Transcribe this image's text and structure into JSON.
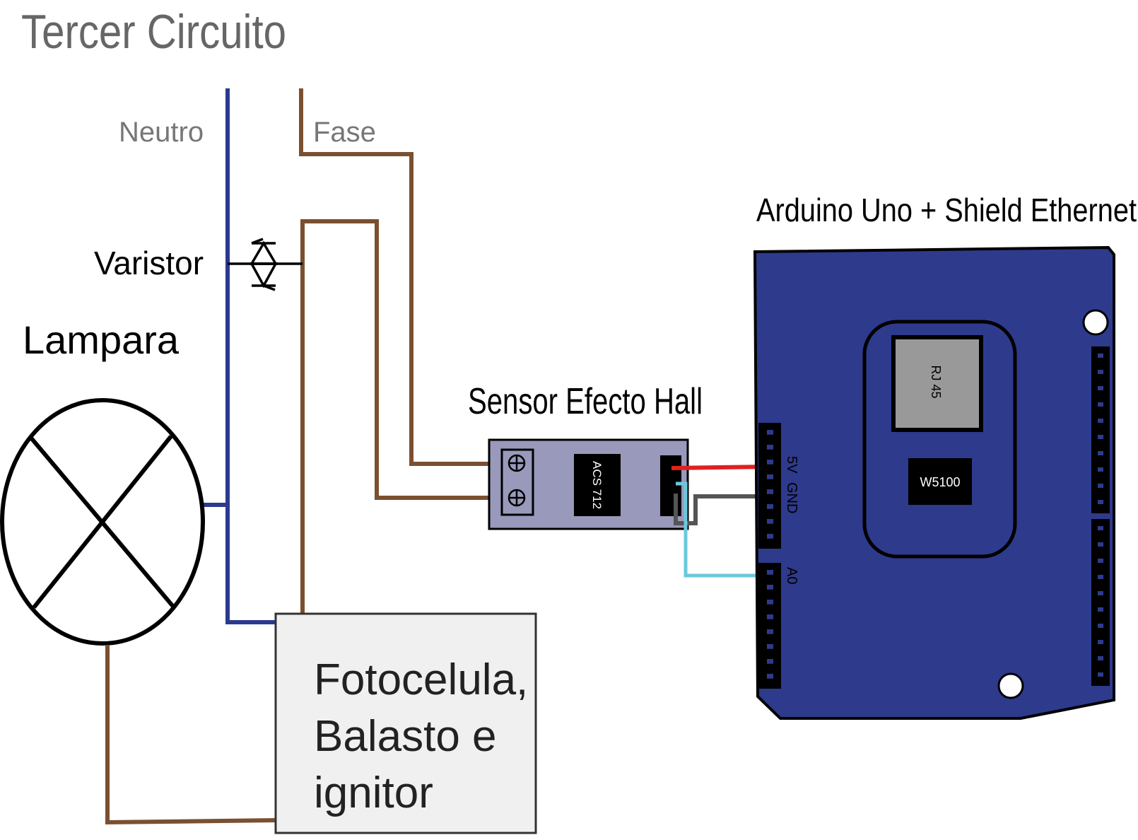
{
  "title": "Tercer Circuito",
  "labels": {
    "neutro": "Neutro",
    "fase": "Fase",
    "varistor": "Varistor",
    "lampara": "Lampara",
    "sensor": "Sensor Efecto Hall",
    "arduino": "Arduino Uno + Shield Ethernet"
  },
  "box": {
    "line1": "Fotocelula,",
    "line2": "Balasto e",
    "line3": "ignitor"
  },
  "sensor_chip": "ACS 712",
  "arduino_parts": {
    "rj45": "RJ 45",
    "chip": "W5100",
    "pin_5v": "5V",
    "pin_gnd": "GND",
    "pin_a0": "A0"
  },
  "colors": {
    "neutro_wire": "#2b3a8f",
    "fase_wire": "#7a5030",
    "board": "#2e3a8c",
    "sensor_board": "#9999bb",
    "wire_5v": "#e02020",
    "wire_gnd": "#555555",
    "wire_a0": "#6cc8dc",
    "box_fill": "#f0f0f0",
    "title_text": "#666666",
    "label_gray": "#777777"
  }
}
